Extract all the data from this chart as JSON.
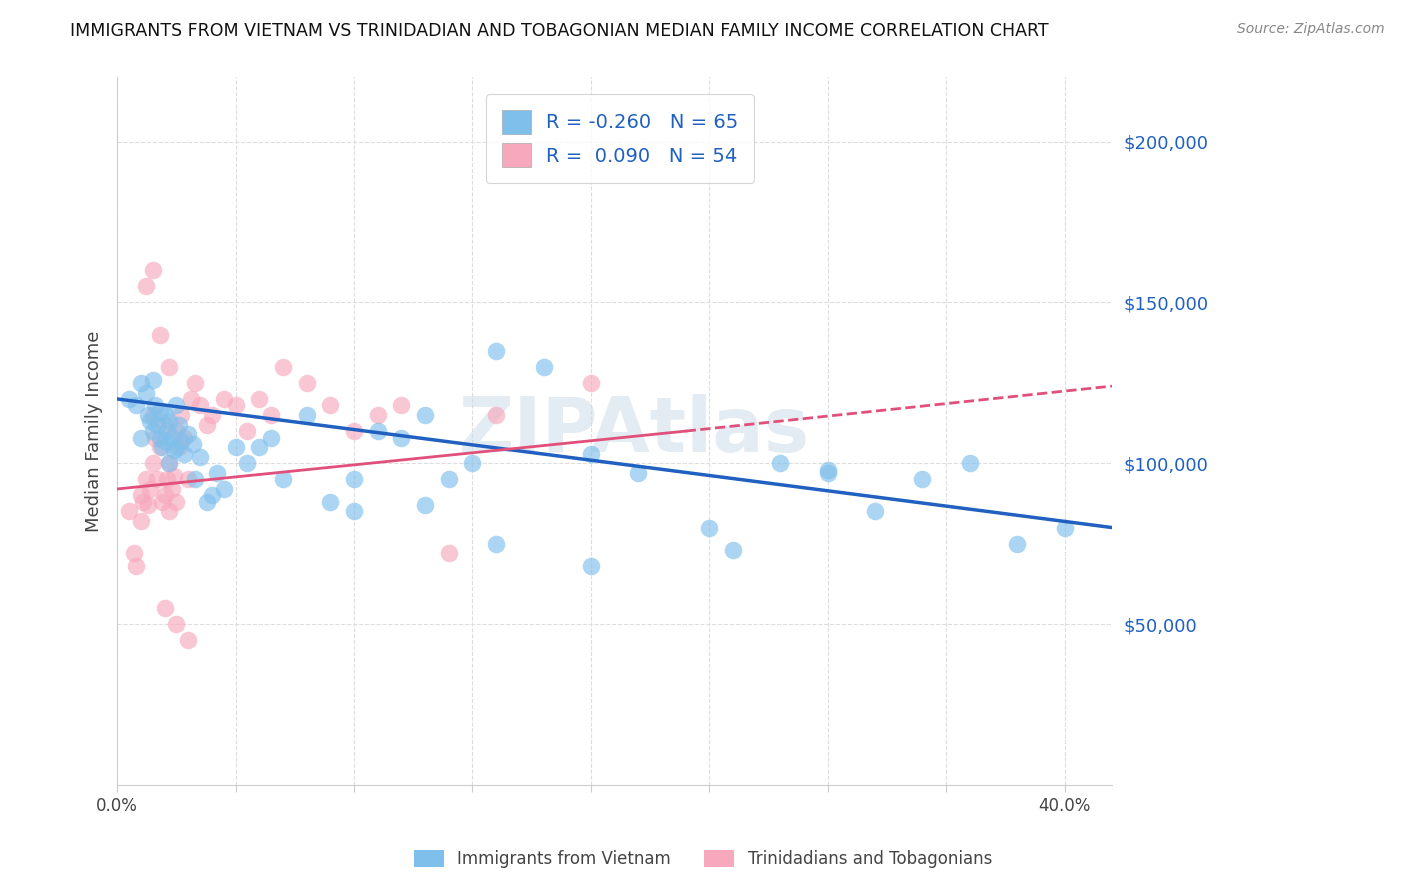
{
  "title": "IMMIGRANTS FROM VIETNAM VS TRINIDADIAN AND TOBAGONIAN MEDIAN FAMILY INCOME CORRELATION CHART",
  "source": "Source: ZipAtlas.com",
  "ylabel": "Median Family Income",
  "ytick_labels": [
    "$50,000",
    "$100,000",
    "$150,000",
    "$200,000"
  ],
  "ytick_values": [
    50000,
    100000,
    150000,
    200000
  ],
  "ylim": [
    0,
    220000
  ],
  "xlim": [
    0.0,
    0.42
  ],
  "legend_blue_r": "-0.260",
  "legend_blue_n": "65",
  "legend_pink_r": "0.090",
  "legend_pink_n": "54",
  "legend_label_blue": "Immigrants from Vietnam",
  "legend_label_pink": "Trinidadians and Tobagonians",
  "blue_color": "#7fbfeb",
  "pink_color": "#f7a8bc",
  "blue_line_color": "#2060c0",
  "pink_line_color": "#e0507a",
  "watermark": "ZIPAtlas",
  "blue_scatter_x": [
    0.005,
    0.008,
    0.01,
    0.01,
    0.012,
    0.013,
    0.014,
    0.015,
    0.015,
    0.016,
    0.017,
    0.018,
    0.018,
    0.019,
    0.02,
    0.02,
    0.021,
    0.022,
    0.022,
    0.023,
    0.024,
    0.025,
    0.025,
    0.026,
    0.027,
    0.028,
    0.03,
    0.032,
    0.033,
    0.035,
    0.038,
    0.04,
    0.042,
    0.045,
    0.05,
    0.055,
    0.06,
    0.065,
    0.07,
    0.08,
    0.09,
    0.1,
    0.11,
    0.12,
    0.13,
    0.14,
    0.15,
    0.16,
    0.18,
    0.2,
    0.22,
    0.25,
    0.28,
    0.3,
    0.32,
    0.34,
    0.36,
    0.38,
    0.4,
    0.3,
    0.26,
    0.2,
    0.16,
    0.13,
    0.1
  ],
  "blue_scatter_y": [
    120000,
    118000,
    125000,
    108000,
    122000,
    115000,
    113000,
    126000,
    110000,
    118000,
    112000,
    108000,
    116000,
    105000,
    115000,
    107000,
    110000,
    113000,
    100000,
    108000,
    104000,
    118000,
    105000,
    112000,
    107000,
    103000,
    109000,
    106000,
    95000,
    102000,
    88000,
    90000,
    97000,
    92000,
    105000,
    100000,
    105000,
    108000,
    95000,
    115000,
    88000,
    85000,
    110000,
    108000,
    115000,
    95000,
    100000,
    135000,
    130000,
    103000,
    97000,
    80000,
    100000,
    97000,
    85000,
    95000,
    100000,
    75000,
    80000,
    98000,
    73000,
    68000,
    75000,
    87000,
    95000
  ],
  "pink_scatter_x": [
    0.005,
    0.007,
    0.008,
    0.01,
    0.01,
    0.011,
    0.012,
    0.013,
    0.014,
    0.015,
    0.015,
    0.016,
    0.017,
    0.018,
    0.019,
    0.02,
    0.02,
    0.021,
    0.022,
    0.022,
    0.023,
    0.024,
    0.025,
    0.025,
    0.026,
    0.027,
    0.028,
    0.03,
    0.031,
    0.033,
    0.035,
    0.038,
    0.04,
    0.045,
    0.05,
    0.055,
    0.06,
    0.065,
    0.07,
    0.08,
    0.09,
    0.1,
    0.11,
    0.12,
    0.14,
    0.16,
    0.2,
    0.015,
    0.012,
    0.018,
    0.022,
    0.03,
    0.02,
    0.025
  ],
  "pink_scatter_y": [
    85000,
    72000,
    68000,
    90000,
    82000,
    88000,
    95000,
    87000,
    92000,
    115000,
    100000,
    108000,
    95000,
    105000,
    88000,
    112000,
    90000,
    95000,
    100000,
    85000,
    92000,
    96000,
    110000,
    88000,
    105000,
    115000,
    108000,
    95000,
    120000,
    125000,
    118000,
    112000,
    115000,
    120000,
    118000,
    110000,
    120000,
    115000,
    130000,
    125000,
    118000,
    110000,
    115000,
    118000,
    72000,
    115000,
    125000,
    160000,
    155000,
    140000,
    130000,
    45000,
    55000,
    50000
  ],
  "blue_line_x0": 0.0,
  "blue_line_y0": 120000,
  "blue_line_x1": 0.42,
  "blue_line_y1": 80000,
  "pink_line_solid_x0": 0.0,
  "pink_line_solid_y0": 92000,
  "pink_line_solid_x1": 0.24,
  "pink_line_solid_y1": 110000,
  "pink_line_dash_x0": 0.24,
  "pink_line_dash_y0": 110000,
  "pink_line_dash_x1": 0.42,
  "pink_line_dash_y1": 124000
}
